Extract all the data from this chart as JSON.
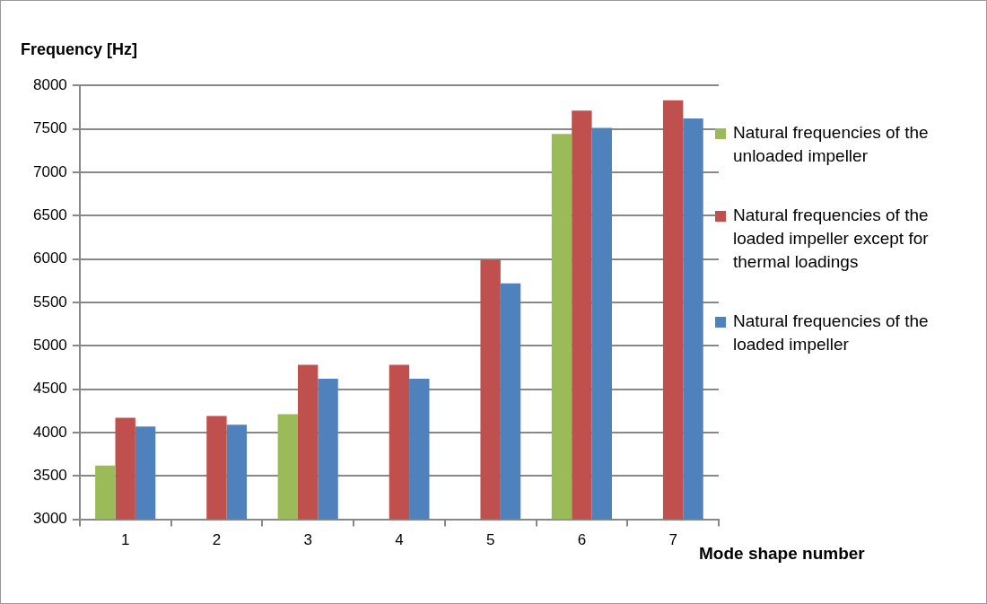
{
  "chart_data": {
    "type": "bar",
    "xlabel": "Mode shape number",
    "ylabel": "Frequency [Hz]",
    "categories": [
      "1",
      "2",
      "3",
      "4",
      "5",
      "6",
      "7"
    ],
    "series": [
      {
        "name": "Natural frequencies of the unloaded impeller",
        "color": "#9bbb59",
        "values": [
          3620,
          null,
          4210,
          null,
          null,
          7440,
          null
        ]
      },
      {
        "name": "Natural frequencies of the loaded impeller except for thermal loadings",
        "color": "#c0504d",
        "values": [
          4170,
          4190,
          4780,
          4780,
          5990,
          7710,
          7830
        ]
      },
      {
        "name": "Natural frequencies of the loaded impeller",
        "color": "#4f81bd",
        "values": [
          4070,
          4090,
          4620,
          4620,
          5720,
          7510,
          7620
        ]
      }
    ],
    "ylim": [
      3000,
      8000
    ],
    "yticks": [
      3000,
      3500,
      4000,
      4500,
      5000,
      5500,
      6000,
      6500,
      7000,
      7500,
      8000
    ],
    "grid": "y",
    "legend": "right"
  }
}
